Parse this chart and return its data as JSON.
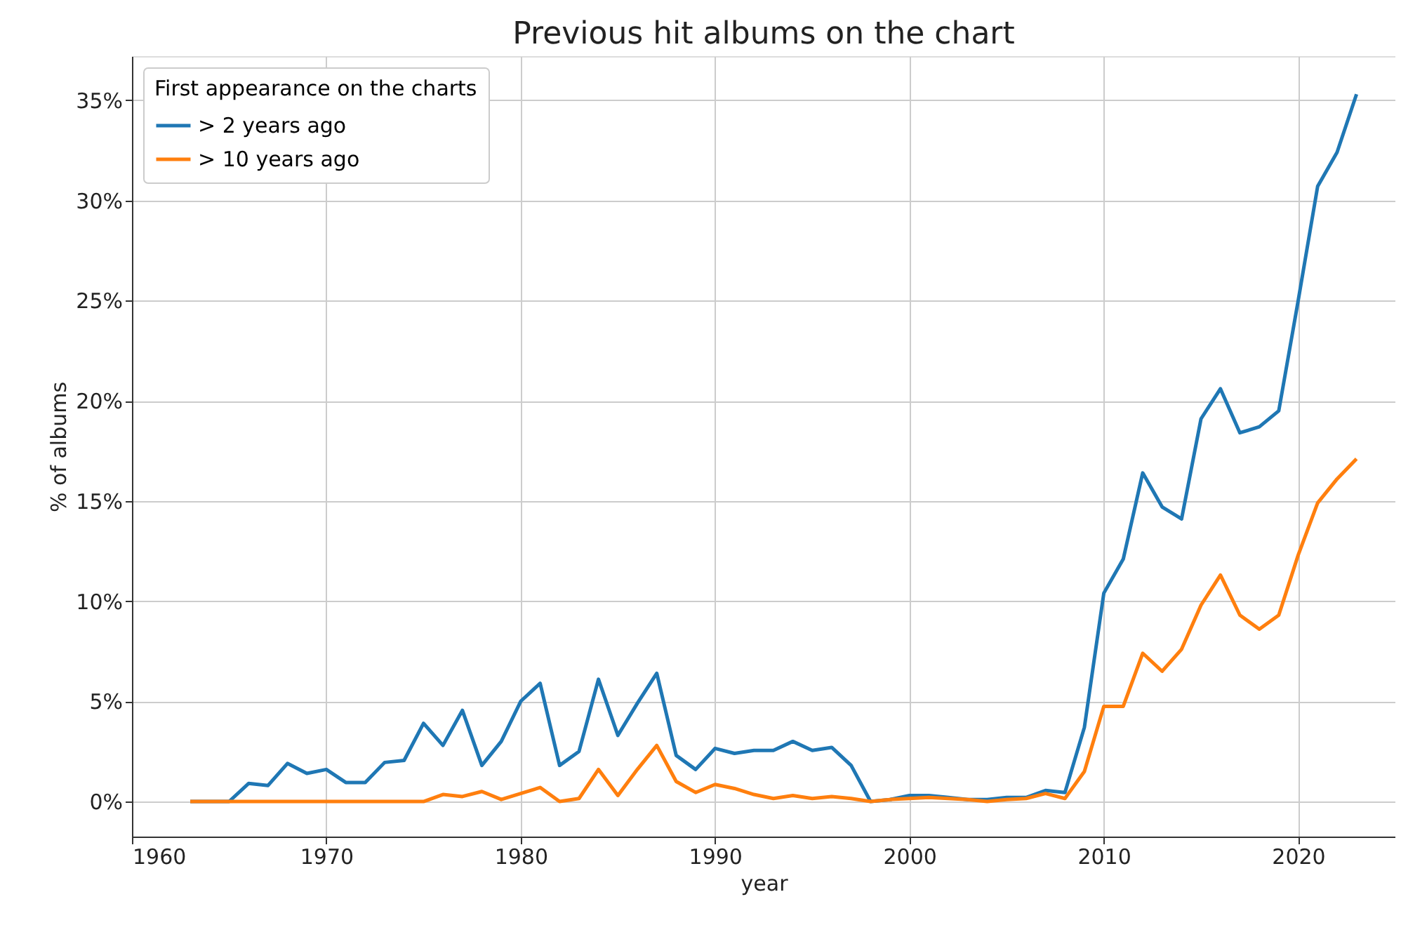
{
  "chart_data": {
    "type": "line",
    "title": "Previous hit albums on the chart",
    "xlabel": "year",
    "ylabel": "% of albums",
    "legend_title": "First appearance on the charts",
    "x": [
      1963,
      1964,
      1965,
      1966,
      1967,
      1968,
      1969,
      1970,
      1971,
      1972,
      1973,
      1974,
      1975,
      1976,
      1977,
      1978,
      1979,
      1980,
      1981,
      1982,
      1983,
      1984,
      1985,
      1986,
      1987,
      1988,
      1989,
      1990,
      1991,
      1992,
      1993,
      1994,
      1995,
      1996,
      1997,
      1998,
      1999,
      2000,
      2001,
      2002,
      2003,
      2004,
      2005,
      2006,
      2007,
      2008,
      2009,
      2010,
      2011,
      2012,
      2013,
      2014,
      2015,
      2016,
      2017,
      2018,
      2019,
      2020,
      2021,
      2022,
      2023
    ],
    "series": [
      {
        "name": "> 2 years ago",
        "color": "#1f77b4",
        "values": [
          0,
          0,
          0,
          0.9,
          0.8,
          1.9,
          1.4,
          1.6,
          0.95,
          0.95,
          1.95,
          2.05,
          3.9,
          2.8,
          4.55,
          1.8,
          3.0,
          5.0,
          5.9,
          1.8,
          2.5,
          6.1,
          3.3,
          4.9,
          6.4,
          2.3,
          1.6,
          2.65,
          2.4,
          2.55,
          2.55,
          3.0,
          2.55,
          2.7,
          1.8,
          0,
          0.1,
          0.3,
          0.3,
          0.2,
          0.1,
          0.1,
          0.2,
          0.2,
          0.55,
          0.45,
          3.7,
          10.4,
          12.1,
          16.4,
          14.7,
          14.1,
          19.1,
          20.6,
          18.4,
          18.7,
          19.5,
          25.0,
          30.7,
          32.4,
          35.3
        ]
      },
      {
        "name": "> 10 years ago",
        "color": "#ff7f0e",
        "values": [
          0,
          0,
          0,
          0,
          0,
          0,
          0,
          0,
          0,
          0,
          0,
          0,
          0,
          0.35,
          0.25,
          0.5,
          0.1,
          0.4,
          0.7,
          0,
          0.15,
          1.6,
          0.3,
          1.6,
          2.8,
          1.0,
          0.45,
          0.85,
          0.65,
          0.35,
          0.15,
          0.3,
          0.15,
          0.25,
          0.15,
          0,
          0.1,
          0.15,
          0.2,
          0.15,
          0.1,
          0,
          0.1,
          0.15,
          0.4,
          0.15,
          1.5,
          4.75,
          4.75,
          7.4,
          6.5,
          7.6,
          9.8,
          11.3,
          9.3,
          8.6,
          9.3,
          12.3,
          14.9,
          16.1,
          17.1
        ]
      }
    ],
    "xlim": [
      1960,
      2025
    ],
    "xticks": [
      1960,
      1970,
      1980,
      1990,
      2000,
      2010,
      2020
    ],
    "ylim": [
      -1.75,
      37.2
    ],
    "yticks": [
      {
        "value": 0,
        "label": "0%"
      },
      {
        "value": 5,
        "label": "5%"
      },
      {
        "value": 10,
        "label": "10%"
      },
      {
        "value": 15,
        "label": "15%"
      },
      {
        "value": 20,
        "label": "20%"
      },
      {
        "value": 25,
        "label": "25%"
      },
      {
        "value": 30,
        "label": "30%"
      },
      {
        "value": 35,
        "label": "35%"
      }
    ],
    "grid": true,
    "legend": "top left",
    "line_style": "solid",
    "marker": "none"
  }
}
